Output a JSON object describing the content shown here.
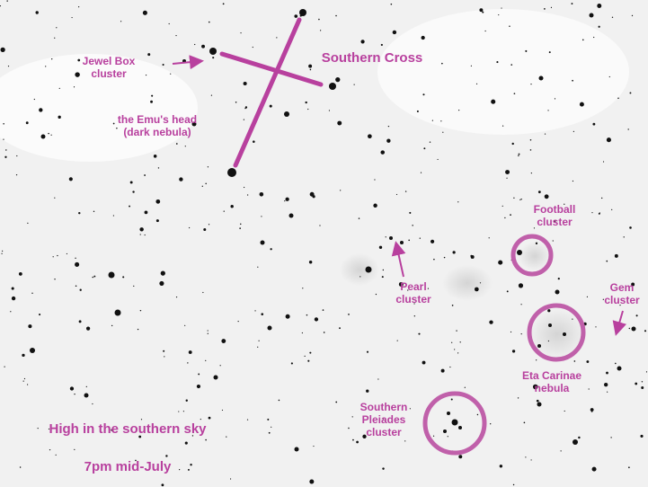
{
  "labels": [
    {
      "lines": [
        "Jewel Box",
        "cluster"
      ]
    },
    {
      "lines": [
        "Southern Cross"
      ]
    },
    {
      "lines": [
        "the Emu's head",
        "(dark nebula)"
      ]
    },
    {
      "lines": [
        "Football",
        "cluster"
      ]
    },
    {
      "lines": [
        "Pearl",
        "cluster"
      ]
    },
    {
      "lines": [
        "Gem",
        "cluster"
      ]
    },
    {
      "lines": [
        "Eta Carinae",
        "nebula"
      ]
    },
    {
      "lines": [
        "Southern",
        "Pleiades",
        "cluster"
      ]
    },
    {
      "lines": [
        "High in the southern sky"
      ]
    },
    {
      "lines": [
        "7pm mid-July"
      ]
    }
  ]
}
